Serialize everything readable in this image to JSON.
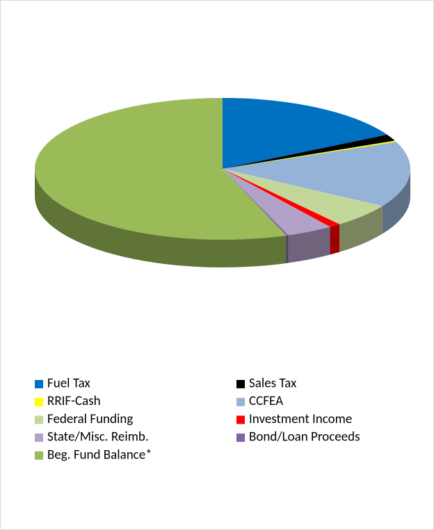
{
  "chart_data": {
    "type": "pie3d",
    "categories": [
      "Fuel Tax",
      "Sales Tax",
      "RRIF-Cash",
      "CCFEA",
      "Federal Funding",
      "Investment Income",
      "State/Misc. Reimb.",
      "Bond/Loan Proceeds",
      "Beg. Fund Balance*"
    ],
    "values": [
      17,
      1.5,
      0.3,
      15,
      5.5,
      1,
      4,
      0.2,
      55.5
    ],
    "colors": [
      "#0070c0",
      "#000000",
      "#ffff00",
      "#95b3d7",
      "#c4d79b",
      "#ff0000",
      "#b3a2c7",
      "#8064a2",
      "#9bbb59"
    ],
    "legend": "bottom"
  }
}
